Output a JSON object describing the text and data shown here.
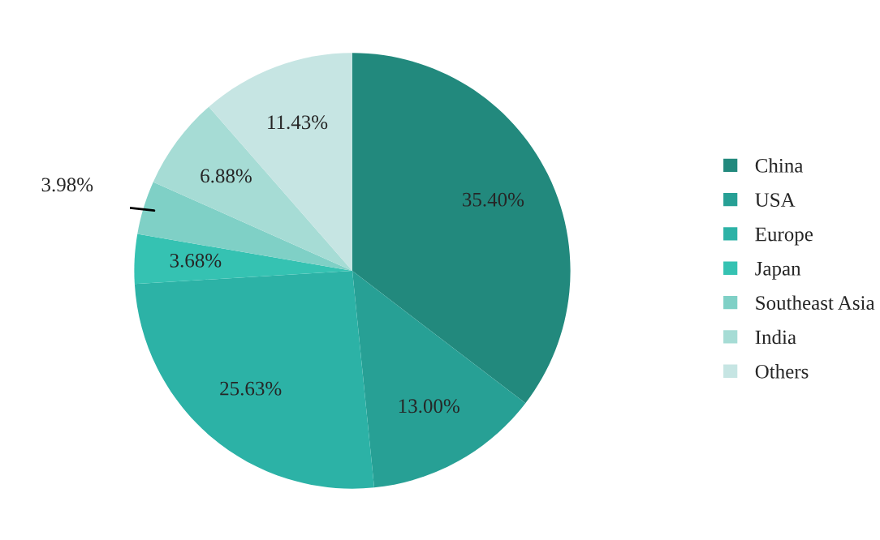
{
  "chart_data": {
    "type": "pie",
    "categories": [
      "China",
      "USA",
      "Europe",
      "Japan",
      "Southeast Asia",
      "India",
      "Others"
    ],
    "values": [
      35.4,
      13.0,
      25.63,
      3.68,
      3.98,
      6.88,
      11.43
    ],
    "value_labels": [
      "35.40%",
      "13.00%",
      "25.63%",
      "3.68%",
      "3.98%",
      "6.88%",
      "11.43%"
    ],
    "colors": [
      "#22897d",
      "#27a095",
      "#2cb2a6",
      "#35c2b2",
      "#7fd0c6",
      "#a6dcd5",
      "#c6e5e3"
    ],
    "legend": "right"
  }
}
